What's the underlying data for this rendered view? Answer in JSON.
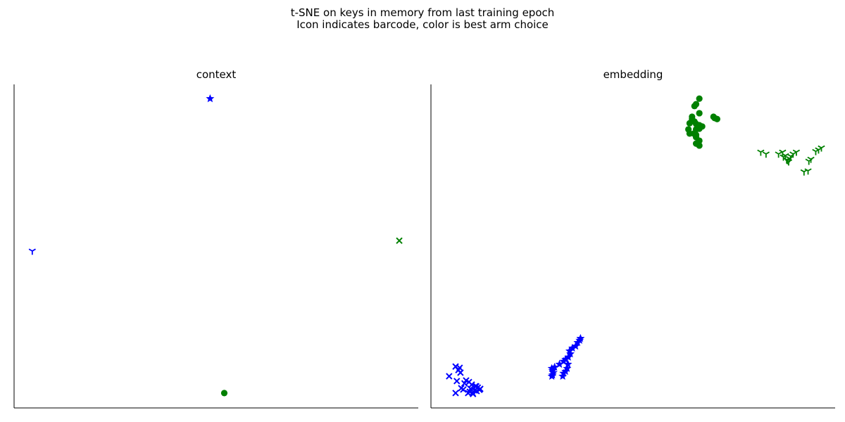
{
  "figure": {
    "title_line1": "t-SNE on keys in memory from last training epoch",
    "title_line2": "Icon indicates barcode, color is best arm choice"
  },
  "chart_data": [
    {
      "type": "scatter",
      "title": "context",
      "xlabel": "",
      "ylabel": "",
      "xlim": [
        0,
        100
      ],
      "ylim": [
        0,
        100
      ],
      "grid": false,
      "axes_ticks": false,
      "marker_encoding": "barcode",
      "color_encoding": "best arm choice",
      "colors": {
        "arm_a": "#0000ff",
        "arm_b": "#008000"
      },
      "series": [
        {
          "marker": "star",
          "color": "#0000ff",
          "x": [
            48.5
          ],
          "y": [
            95.6
          ]
        },
        {
          "marker": "tri_down",
          "color": "#0000ff",
          "x": [
            4.5
          ],
          "y": [
            48.5
          ]
        },
        {
          "marker": "x",
          "color": "#008000",
          "x": [
            95.3
          ],
          "y": [
            51.7
          ]
        },
        {
          "marker": "circle",
          "color": "#008000",
          "x": [
            52.0
          ],
          "y": [
            4.6
          ]
        }
      ]
    },
    {
      "type": "scatter",
      "title": "embedding",
      "xlabel": "",
      "ylabel": "",
      "xlim": [
        0,
        100
      ],
      "ylim": [
        0,
        100
      ],
      "grid": false,
      "axes_ticks": false,
      "marker_encoding": "barcode",
      "color_encoding": "best arm choice",
      "colors": {
        "arm_a": "#0000ff",
        "arm_b": "#008000"
      },
      "series": [
        {
          "marker": "circle",
          "color": "#008000",
          "x": [
            66.4,
            65.6,
            65.2,
            66.4,
            64.6,
            65.2,
            64.0,
            65.6,
            66.4,
            67.1,
            66.4,
            65.6,
            63.7,
            65.6,
            64.0,
            66.4,
            65.6,
            66.4,
            69.9,
            70.2,
            70.8,
            64.6,
            65.6,
            66.4,
            65.0
          ],
          "y": [
            95.6,
            93.9,
            93.3,
            91.1,
            89.3,
            88.5,
            88.0,
            87.8,
            87.4,
            87.0,
            86.3,
            86.1,
            86.1,
            84.4,
            84.8,
            86.5,
            81.7,
            81.1,
            90.0,
            89.6,
            89.3,
            90.0,
            83.7,
            82.6,
            84.8
          ]
        },
        {
          "marker": "tri_down",
          "color": "#008000",
          "x": [
            81.6,
            82.9,
            86.0,
            87.0,
            87.7,
            88.0,
            88.5,
            88.7,
            89.0,
            89.6,
            90.4,
            93.5,
            94.0,
            95.2,
            95.9,
            96.6,
            92.3,
            93.3,
            87.2,
            88.2
          ],
          "y": [
            79.1,
            78.5,
            78.5,
            79.1,
            78.0,
            76.7,
            76.1,
            77.1,
            77.8,
            78.5,
            79.1,
            76.3,
            76.9,
            79.3,
            79.8,
            80.4,
            73.0,
            73.3,
            77.6,
            76.5
          ]
        },
        {
          "marker": "star",
          "color": "#0000ff",
          "x": [
            29.9,
            30.1,
            30.3,
            30.1,
            29.9,
            30.6,
            32.6,
            32.8,
            33.3,
            33.7,
            33.9,
            32.8,
            33.3,
            34.0,
            34.3,
            35.0,
            35.8,
            36.3,
            36.8,
            37.0,
            34.5,
            31.8
          ],
          "y": [
            9.8,
            10.2,
            10.9,
            11.5,
            12.2,
            12.6,
            9.8,
            10.7,
            11.3,
            12.2,
            13.5,
            14.4,
            15.0,
            15.7,
            17.6,
            18.5,
            19.1,
            20.2,
            20.9,
            21.5,
            16.7,
            13.5
          ]
        },
        {
          "marker": "x",
          "color": "#0000ff",
          "x": [
            6.1,
            6.8,
            7.1,
            7.3,
            4.5,
            6.4,
            8.3,
            8.7,
            9.4,
            10.1,
            11.2,
            7.5,
            8.0,
            9.6,
            10.3,
            10.8,
            11.6,
            12.2,
            9.2,
            10.4,
            11.3,
            12.0,
            6.1,
            11.0,
            9.8
          ],
          "y": [
            12.8,
            11.7,
            12.4,
            10.9,
            9.8,
            8.3,
            7.6,
            8.5,
            8.0,
            7.2,
            6.7,
            6.1,
            5.7,
            5.0,
            4.6,
            5.4,
            6.3,
            5.9,
            4.6,
            4.3,
            5.2,
            5.6,
            4.6,
            6.7,
            5.9
          ]
        }
      ]
    }
  ]
}
